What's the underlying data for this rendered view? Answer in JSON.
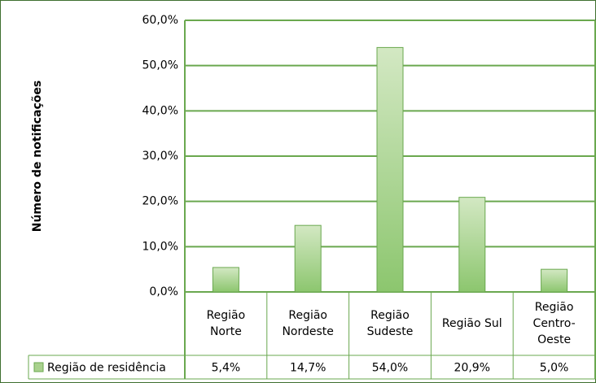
{
  "chart_data": {
    "type": "bar",
    "y_label": "Número de notificações",
    "categories": [
      "Região Norte",
      "Região Nordeste",
      "Região Sudeste",
      "Região Sul",
      "Região Centro-Oeste"
    ],
    "series": [
      {
        "name": "Região de residência",
        "color": "#a9d18e",
        "values": [
          5.4,
          14.7,
          54.0,
          20.9,
          5.0
        ],
        "value_labels": [
          "5,4%",
          "14,7%",
          "54,0%",
          "20,9%",
          "5,0%"
        ]
      }
    ],
    "ylim": [
      0,
      60
    ],
    "yticks": [
      {
        "value": 0,
        "label": "0,0%"
      },
      {
        "value": 10,
        "label": "10,0%"
      },
      {
        "value": 20,
        "label": "20,0%"
      },
      {
        "value": 30,
        "label": "30,0%"
      },
      {
        "value": 40,
        "label": "40,0%"
      },
      {
        "value": 50,
        "label": "50,0%"
      },
      {
        "value": 60,
        "label": "60,0%"
      }
    ],
    "grid": true
  }
}
